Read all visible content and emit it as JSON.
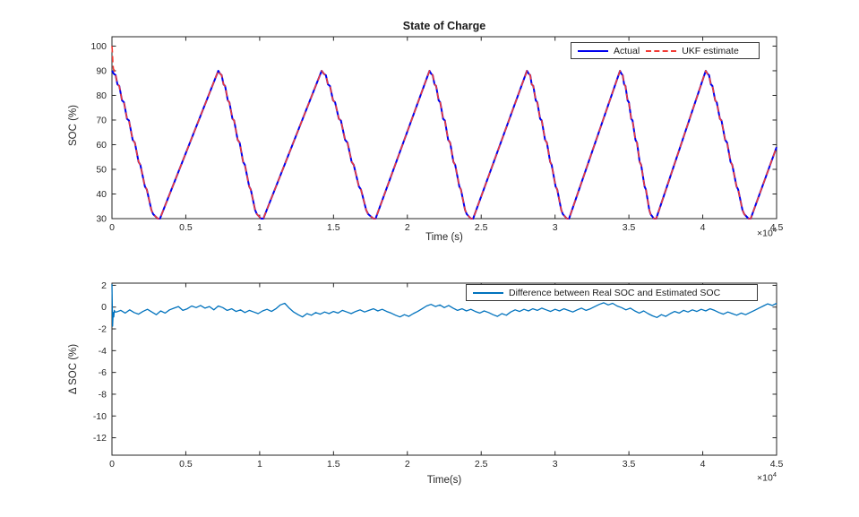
{
  "figure": {
    "background": "#ffffff",
    "axis_color": "#262626",
    "tick_label_color": "#262626"
  },
  "chart_data": [
    {
      "type": "line",
      "title": "State of Charge",
      "xlabel": "Time (s)",
      "ylabel": "SOC (%)",
      "x_multiplier": {
        "text": "×10",
        "exp": "4"
      },
      "x_unit_scale": 10000,
      "xlim": [
        0,
        4.5
      ],
      "ylim": [
        30,
        103.8
      ],
      "grid": false,
      "xticks": {
        "values": [
          0,
          0.5,
          1,
          1.5,
          2,
          2.5,
          3,
          3.5,
          4,
          4.5
        ],
        "labels": [
          "0",
          "0.5",
          "1",
          "1.5",
          "2",
          "2.5",
          "3",
          "3.5",
          "4",
          "4.5"
        ]
      },
      "yticks": {
        "values": [
          30,
          40,
          50,
          60,
          70,
          80,
          90,
          100
        ],
        "labels": [
          "30",
          "40",
          "50",
          "60",
          "70",
          "80",
          "90",
          "100"
        ]
      },
      "legend": {
        "position": "top-right",
        "entries": [
          {
            "label": "Actual",
            "color": "#0000EE",
            "style": "solid"
          },
          {
            "label": "UKF estimate",
            "color": "#F23B35",
            "style": "dashed"
          }
        ]
      },
      "series": [
        {
          "name": "Actual",
          "color": "#0000EE",
          "style": "solid",
          "width": 2,
          "x": [
            0,
            0.012,
            0.025,
            0.037,
            0.05,
            0.068,
            0.081,
            0.102,
            0.115,
            0.14,
            0.155,
            0.18,
            0.192,
            0.223,
            0.236,
            0.267,
            0.279,
            0.31,
            0.325,
            0.72,
            0.732,
            0.743,
            0.755,
            0.766,
            0.784,
            0.795,
            0.816,
            0.827,
            0.851,
            0.865,
            0.888,
            0.9,
            0.929,
            0.94,
            0.969,
            0.981,
            1.01,
            1.025,
            1.42,
            1.434,
            1.448,
            1.462,
            1.476,
            1.497,
            1.511,
            1.536,
            1.55,
            1.578,
            1.595,
            1.623,
            1.637,
            1.672,
            1.686,
            1.721,
            1.735,
            1.77,
            1.785,
            2.15,
            2.161,
            2.172,
            2.184,
            2.195,
            2.212,
            2.223,
            2.242,
            2.254,
            2.276,
            2.29,
            2.312,
            2.324,
            2.352,
            2.363,
            2.391,
            2.402,
            2.43,
            2.445,
            2.81,
            2.821,
            2.832,
            2.842,
            2.853,
            2.869,
            2.88,
            2.899,
            2.91,
            2.932,
            2.945,
            2.967,
            2.977,
            3.004,
            3.015,
            3.042,
            3.053,
            3.08,
            3.095,
            3.44,
            3.449,
            3.458,
            3.468,
            3.477,
            3.491,
            3.5,
            3.516,
            3.525,
            3.544,
            3.555,
            3.573,
            3.583,
            3.606,
            3.615,
            3.638,
            3.647,
            3.67,
            3.685,
            4.02,
            4.032,
            4.043,
            4.055,
            4.066,
            4.084,
            4.095,
            4.116,
            4.127,
            4.151,
            4.165,
            4.188,
            4.2,
            4.229,
            4.24,
            4.269,
            4.281,
            4.31,
            4.325,
            4.5
          ],
          "y": [
            90,
            88.8,
            88.2,
            84.5,
            83.8,
            78,
            77.2,
            70.5,
            69.8,
            62,
            60.8,
            53,
            51.8,
            43,
            41.8,
            33.5,
            31.8,
            30,
            30,
            90,
            88.8,
            88.2,
            84.5,
            83.8,
            78,
            77.2,
            70.5,
            69.8,
            62,
            60.8,
            53,
            51.8,
            43,
            41.8,
            33.5,
            31.8,
            30,
            30,
            90,
            88.8,
            88.2,
            84.5,
            83.8,
            78,
            77.2,
            70.5,
            69.8,
            62,
            60.8,
            53,
            51.8,
            43,
            41.8,
            33.5,
            31.8,
            30,
            30,
            90,
            88.8,
            88.2,
            84.5,
            83.8,
            78,
            77.2,
            70.5,
            69.8,
            62,
            60.8,
            53,
            51.8,
            43,
            41.8,
            33.5,
            31.8,
            30,
            30,
            90,
            88.8,
            88.2,
            84.5,
            83.8,
            78,
            77.2,
            70.5,
            69.8,
            62,
            60.8,
            53,
            51.8,
            43,
            41.8,
            33.5,
            31.8,
            30,
            30,
            90,
            88.8,
            88.2,
            84.5,
            83.8,
            78,
            77.2,
            70.5,
            69.8,
            62,
            60.8,
            53,
            51.8,
            43,
            41.8,
            33.5,
            31.8,
            30,
            30,
            90,
            88.8,
            88.2,
            84.5,
            83.8,
            78,
            77.2,
            70.5,
            69.8,
            62,
            60.8,
            53,
            51.8,
            43,
            41.8,
            33.5,
            31.8,
            30,
            30,
            59
          ]
        },
        {
          "name": "UKF estimate",
          "color": "#F23B35",
          "style": "dashed",
          "width": 1.6,
          "x": [
            0,
            0.003,
            0.006,
            0.01,
            0.015
          ],
          "y": [
            100,
            97.5,
            93,
            90.8,
            90.2
          ],
          "follows_series": 0,
          "resume_x": 0.02
        }
      ]
    },
    {
      "type": "line",
      "title": "",
      "xlabel": "Time(s)",
      "ylabel": "Δ SOC (%)",
      "x_multiplier": {
        "text": "×10",
        "exp": "4"
      },
      "x_unit_scale": 10000,
      "xlim": [
        0,
        4.5
      ],
      "ylim": [
        -13.6,
        2.2
      ],
      "grid": false,
      "xticks": {
        "values": [
          0,
          0.5,
          1,
          1.5,
          2,
          2.5,
          3,
          3.5,
          4,
          4.5
        ],
        "labels": [
          "0",
          "0.5",
          "1",
          "1.5",
          "2",
          "2.5",
          "3",
          "3.5",
          "4",
          "4.5"
        ]
      },
      "yticks": {
        "values": [
          2,
          0,
          -2,
          -4,
          -6,
          -8,
          -10,
          -12
        ],
        "labels": [
          "2",
          "0",
          "-2",
          "-4",
          "-6",
          "-8",
          "-10",
          "-12"
        ]
      },
      "legend": {
        "position": "top-right",
        "entries": [
          {
            "label": "Difference between Real SOC and Estimated SOC",
            "color": "#0072BD",
            "style": "solid"
          }
        ]
      },
      "series": [
        {
          "name": "Difference between Real SOC and Estimated SOC",
          "color": "#0072BD",
          "style": "solid",
          "width": 1.3,
          "x": [
            0,
            0.004,
            0.008,
            0.012,
            0.016,
            0.02,
            0.03,
            0.06,
            0.09,
            0.12,
            0.15,
            0.18,
            0.21,
            0.24,
            0.27,
            0.3,
            0.33,
            0.36,
            0.39,
            0.42,
            0.45,
            0.48,
            0.51,
            0.54,
            0.57,
            0.6,
            0.63,
            0.66,
            0.69,
            0.72,
            0.75,
            0.78,
            0.81,
            0.84,
            0.87,
            0.9,
            0.93,
            0.96,
            0.99,
            1.02,
            1.05,
            1.08,
            1.11,
            1.14,
            1.17,
            1.2,
            1.23,
            1.26,
            1.29,
            1.32,
            1.35,
            1.38,
            1.41,
            1.44,
            1.47,
            1.5,
            1.53,
            1.56,
            1.59,
            1.62,
            1.65,
            1.68,
            1.71,
            1.74,
            1.77,
            1.8,
            1.83,
            1.86,
            1.89,
            1.92,
            1.95,
            1.98,
            2.01,
            2.04,
            2.07,
            2.1,
            2.13,
            2.16,
            2.19,
            2.22,
            2.25,
            2.28,
            2.31,
            2.34,
            2.37,
            2.4,
            2.43,
            2.46,
            2.49,
            2.52,
            2.55,
            2.58,
            2.61,
            2.64,
            2.67,
            2.7,
            2.73,
            2.76,
            2.79,
            2.82,
            2.85,
            2.88,
            2.91,
            2.94,
            2.97,
            3.0,
            3.03,
            3.06,
            3.09,
            3.12,
            3.15,
            3.18,
            3.21,
            3.24,
            3.27,
            3.3,
            3.33,
            3.36,
            3.39,
            3.42,
            3.45,
            3.48,
            3.51,
            3.54,
            3.57,
            3.6,
            3.63,
            3.66,
            3.69,
            3.72,
            3.75,
            3.78,
            3.81,
            3.84,
            3.87,
            3.9,
            3.93,
            3.96,
            3.99,
            4.02,
            4.05,
            4.08,
            4.11,
            4.14,
            4.17,
            4.2,
            4.23,
            4.26,
            4.29,
            4.32,
            4.35,
            4.38,
            4.41,
            4.44,
            4.47,
            4.5
          ],
          "y": [
            2.1,
            -1.75,
            -0.5,
            -0.9,
            -0.3,
            -0.45,
            -0.45,
            -0.3,
            -0.55,
            -0.25,
            -0.5,
            -0.65,
            -0.4,
            -0.2,
            -0.45,
            -0.7,
            -0.35,
            -0.55,
            -0.25,
            -0.1,
            0.05,
            -0.3,
            -0.15,
            0.1,
            -0.05,
            0.15,
            -0.1,
            0.05,
            -0.25,
            0.1,
            -0.05,
            -0.3,
            -0.15,
            -0.4,
            -0.25,
            -0.5,
            -0.3,
            -0.45,
            -0.6,
            -0.35,
            -0.2,
            -0.4,
            -0.15,
            0.2,
            0.35,
            -0.1,
            -0.45,
            -0.7,
            -0.9,
            -0.6,
            -0.75,
            -0.5,
            -0.65,
            -0.45,
            -0.6,
            -0.4,
            -0.55,
            -0.3,
            -0.45,
            -0.6,
            -0.4,
            -0.25,
            -0.45,
            -0.3,
            -0.15,
            -0.35,
            -0.2,
            -0.4,
            -0.55,
            -0.75,
            -0.9,
            -0.7,
            -0.85,
            -0.6,
            -0.4,
            -0.15,
            0.1,
            0.25,
            0.05,
            0.2,
            -0.05,
            0.15,
            -0.1,
            -0.3,
            -0.15,
            -0.35,
            -0.2,
            -0.4,
            -0.55,
            -0.35,
            -0.5,
            -0.7,
            -0.85,
            -0.6,
            -0.75,
            -0.45,
            -0.25,
            -0.4,
            -0.2,
            -0.35,
            -0.15,
            -0.3,
            -0.1,
            -0.25,
            -0.4,
            -0.2,
            -0.35,
            -0.15,
            -0.3,
            -0.45,
            -0.25,
            -0.1,
            -0.3,
            -0.15,
            0.05,
            0.25,
            0.4,
            0.2,
            0.35,
            0.1,
            -0.05,
            -0.25,
            -0.1,
            -0.35,
            -0.55,
            -0.35,
            -0.6,
            -0.8,
            -0.95,
            -0.7,
            -0.85,
            -0.6,
            -0.4,
            -0.55,
            -0.3,
            -0.45,
            -0.25,
            -0.4,
            -0.2,
            -0.35,
            -0.15,
            -0.3,
            -0.5,
            -0.65,
            -0.45,
            -0.6,
            -0.75,
            -0.55,
            -0.7,
            -0.5,
            -0.3,
            -0.1,
            0.1,
            0.3,
            0.15,
            0.35
          ]
        }
      ]
    }
  ]
}
